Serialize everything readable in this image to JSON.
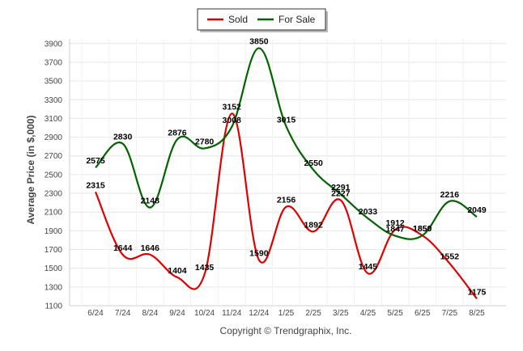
{
  "chart_data": {
    "type": "line",
    "title": "",
    "ylabel": "Average Price (in $,000)",
    "xlabel": "",
    "categories": [
      "6/24",
      "7/24",
      "8/24",
      "9/24",
      "10/24",
      "11/24",
      "12/24",
      "1/25",
      "2/25",
      "3/25",
      "4/25",
      "5/25",
      "6/25",
      "7/25",
      "8/25"
    ],
    "ylim": [
      1100,
      3950
    ],
    "yticks": [
      1100,
      1300,
      1500,
      1700,
      1900,
      2100,
      2300,
      2500,
      2700,
      2900,
      3100,
      3300,
      3500,
      3700,
      3900
    ],
    "grid": true,
    "legend_position": "top-center",
    "series": [
      {
        "name": "Sold",
        "color": "#e00000",
        "values": [
          2315,
          1644,
          1646,
          1404,
          1435,
          3152,
          1590,
          2156,
          1892,
          2227,
          1445,
          1912,
          1850,
          1552,
          1175
        ]
      },
      {
        "name": "For Sale",
        "color": "#006400",
        "values": [
          2575,
          2830,
          2148,
          2876,
          2780,
          3008,
          3850,
          3015,
          2550,
          2291,
          2033,
          1847,
          1850,
          2216,
          2049
        ]
      }
    ],
    "credit": "Copyright © Trendgraphix, Inc."
  }
}
